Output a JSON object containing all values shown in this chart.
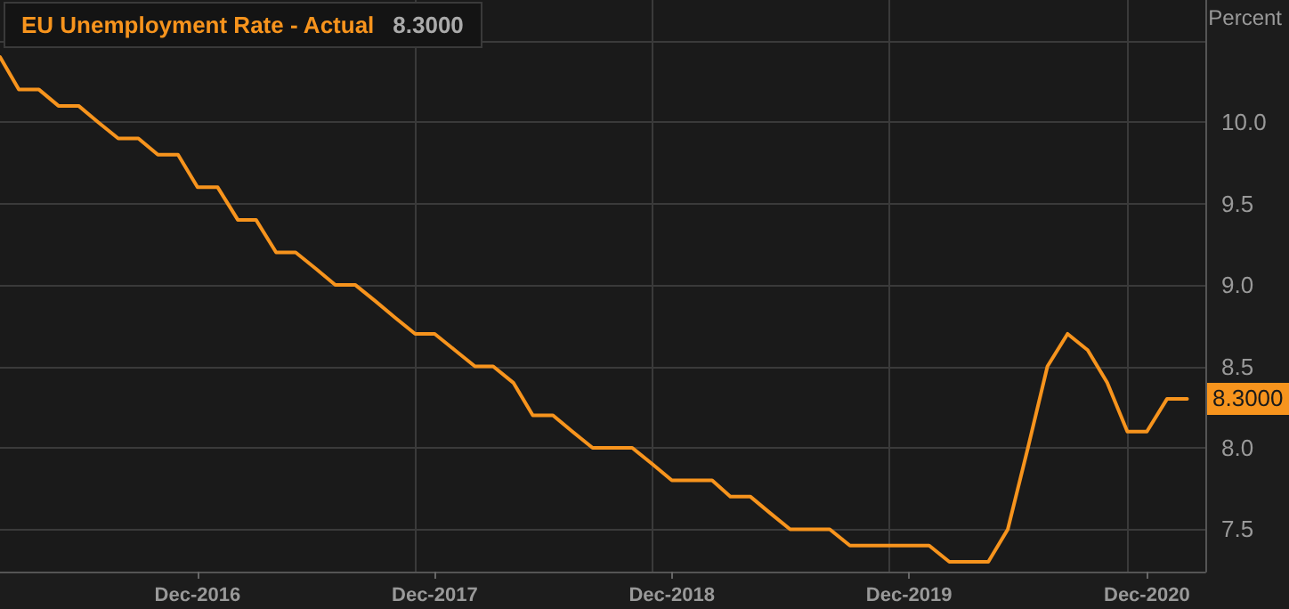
{
  "chart_data": {
    "type": "line",
    "title": "EU Unemployment Rate - Actual",
    "subtitle": "8.3000",
    "ylabel": "Percent",
    "x": [
      "2016-02",
      "2016-03",
      "2016-04",
      "2016-05",
      "2016-06",
      "2016-07",
      "2016-08",
      "2016-09",
      "2016-10",
      "2016-11",
      "2016-12",
      "2017-01",
      "2017-02",
      "2017-03",
      "2017-04",
      "2017-05",
      "2017-06",
      "2017-07",
      "2017-08",
      "2017-09",
      "2017-10",
      "2017-11",
      "2017-12",
      "2018-01",
      "2018-02",
      "2018-03",
      "2018-04",
      "2018-05",
      "2018-06",
      "2018-07",
      "2018-08",
      "2018-09",
      "2018-10",
      "2018-11",
      "2018-12",
      "2019-01",
      "2019-02",
      "2019-03",
      "2019-04",
      "2019-05",
      "2019-06",
      "2019-07",
      "2019-08",
      "2019-09",
      "2019-10",
      "2019-11",
      "2019-12",
      "2020-01",
      "2020-02",
      "2020-03",
      "2020-04",
      "2020-05",
      "2020-06",
      "2020-07",
      "2020-08",
      "2020-09",
      "2020-10",
      "2020-11",
      "2020-12",
      "2021-01",
      "2021-02"
    ],
    "series": [
      {
        "color": "#f7941d",
        "values": [
          10.4,
          10.2,
          10.2,
          10.1,
          10.1,
          10.0,
          9.9,
          9.9,
          9.8,
          9.8,
          9.6,
          9.6,
          9.4,
          9.4,
          9.2,
          9.2,
          9.1,
          9.0,
          9.0,
          8.9,
          8.8,
          8.7,
          8.7,
          8.6,
          8.5,
          8.5,
          8.4,
          8.2,
          8.2,
          8.1,
          8.0,
          8.0,
          8.0,
          7.9,
          7.8,
          7.8,
          7.8,
          7.7,
          7.7,
          7.6,
          7.5,
          7.5,
          7.5,
          7.4,
          7.4,
          7.4,
          7.4,
          7.4,
          7.3,
          7.3,
          7.3,
          7.5,
          8.0,
          8.5,
          8.7,
          8.6,
          8.4,
          8.1,
          8.1,
          8.3,
          8.3
        ]
      }
    ],
    "xlim": [
      "2016-02",
      "2021-03"
    ],
    "xticks": [
      {
        "value": "2016-12",
        "label": "Dec-2016"
      },
      {
        "value": "2017-11",
        "label": null
      },
      {
        "value": "2017-12",
        "label": "Dec-2017"
      },
      {
        "value": "2018-11",
        "label": null
      },
      {
        "value": "2018-12",
        "label": "Dec-2018"
      },
      {
        "value": "2019-11",
        "label": null
      },
      {
        "value": "2019-12",
        "label": "Dec-2019"
      },
      {
        "value": "2020-11",
        "label": null
      },
      {
        "value": "2020-12",
        "label": "Dec-2020"
      }
    ],
    "ylim": [
      7.24,
      10.75
    ],
    "yticks": [
      7.5,
      {
        "value": 8,
        "label": "8.0"
      },
      8.5,
      {
        "value": 9,
        "label": "9.0"
      },
      9.5,
      {
        "value": 10,
        "label": "10.0"
      },
      {
        "value": 10.5,
        "label": null
      }
    ],
    "grid": true,
    "marker": "none",
    "line_style": "solid",
    "annotations": [
      {
        "text": "8.3000",
        "x": "2021-02",
        "y": 8.3
      }
    ]
  }
}
